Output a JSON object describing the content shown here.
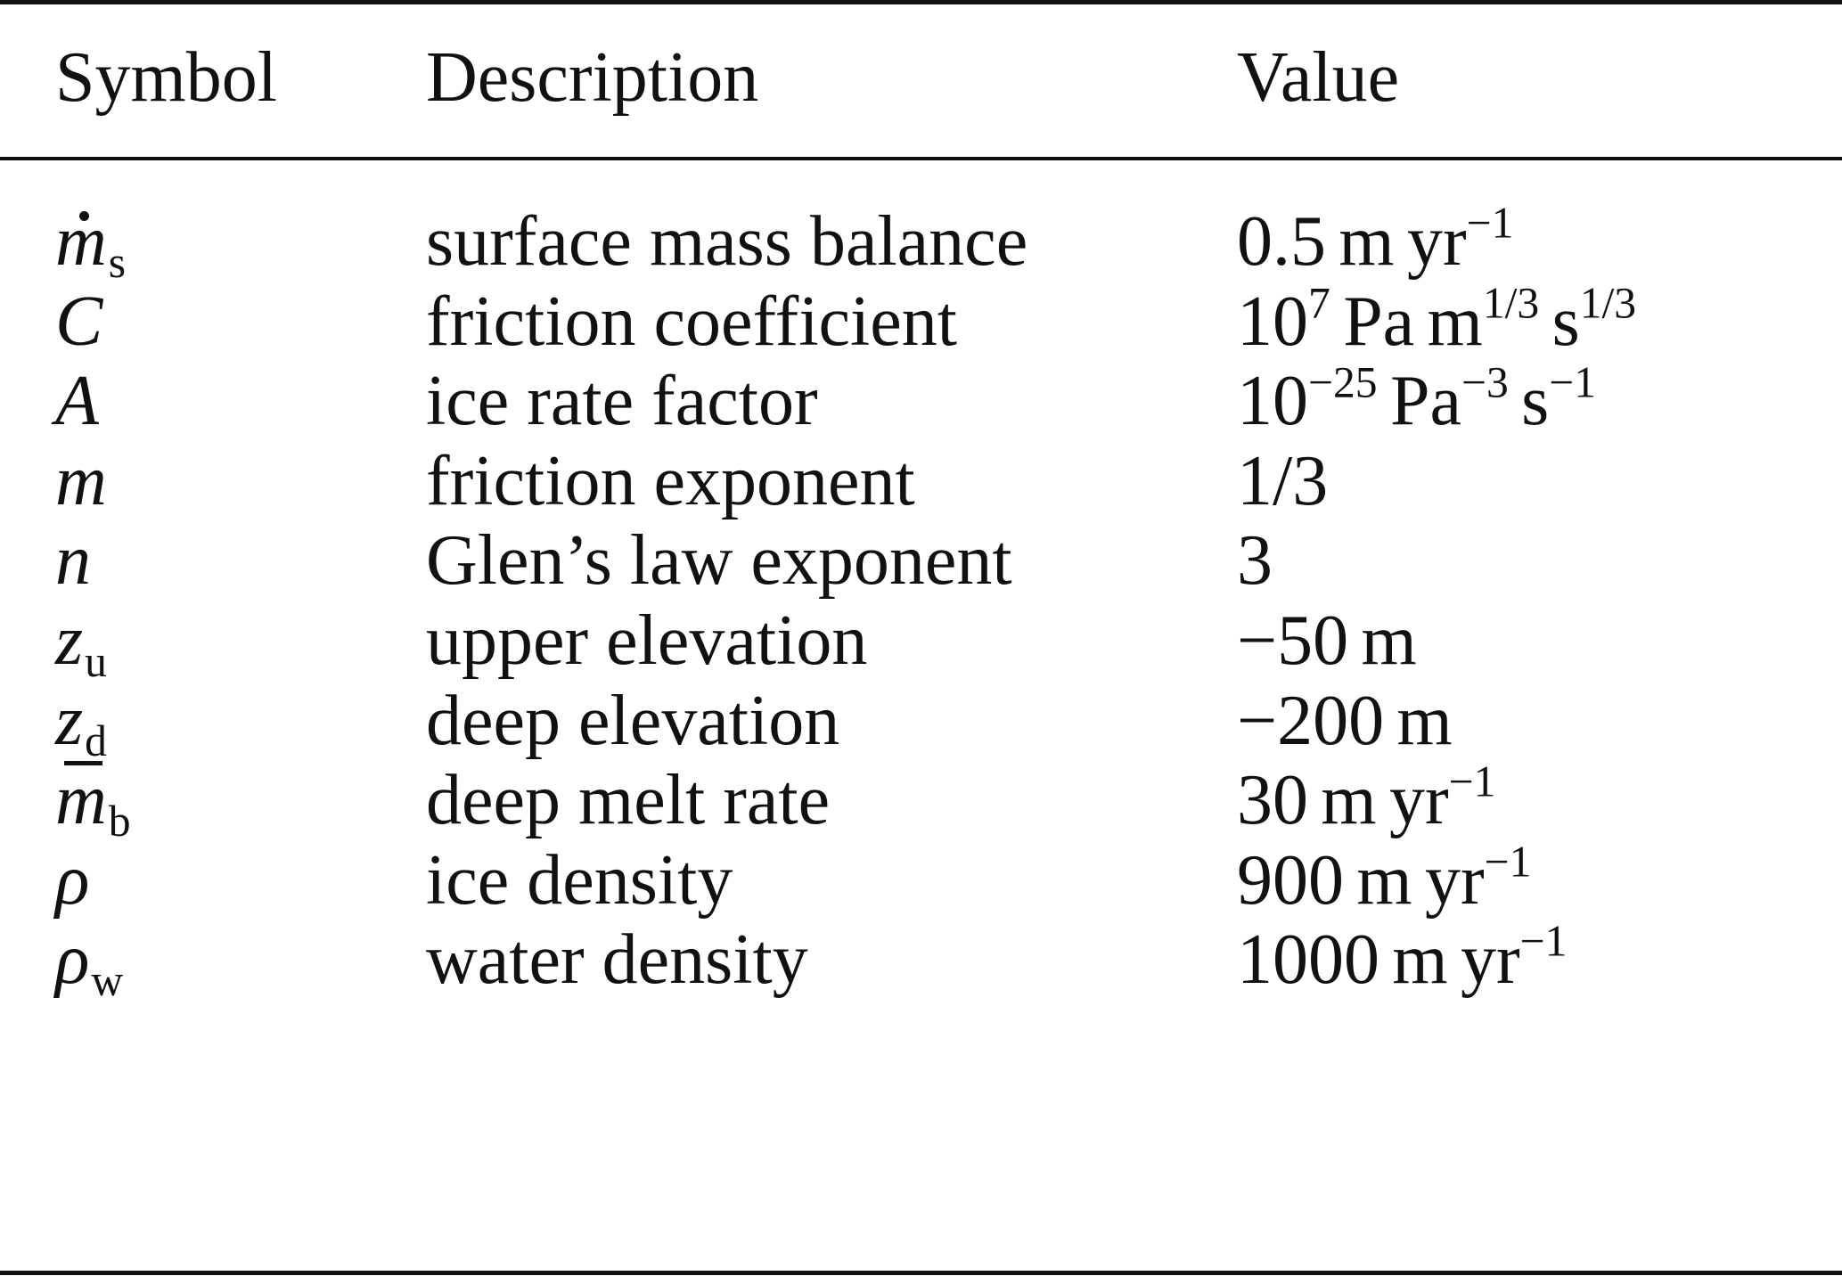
{
  "table": {
    "headers": {
      "symbol": "Symbol",
      "description": "Description",
      "value": "Value"
    },
    "rows": [
      {
        "symbol_base": "m",
        "symbol_sub": "s",
        "symbol_accent": "dot",
        "description": "surface mass balance",
        "value_parts": [
          {
            "t": "0.5"
          },
          {
            "sp": 1
          },
          {
            "t": "m"
          },
          {
            "sp": 1
          },
          {
            "t": "yr"
          },
          {
            "sup": "−1"
          }
        ]
      },
      {
        "symbol_base": "C",
        "symbol_sub": "",
        "symbol_accent": "",
        "description": "friction coefficient",
        "value_parts": [
          {
            "t": "10"
          },
          {
            "sup": "7"
          },
          {
            "sp": 1
          },
          {
            "t": "Pa"
          },
          {
            "sp": 1
          },
          {
            "t": "m"
          },
          {
            "sup": "1/3"
          },
          {
            "sp": 1
          },
          {
            "t": "s"
          },
          {
            "sup": "1/3"
          }
        ]
      },
      {
        "symbol_base": "A",
        "symbol_sub": "",
        "symbol_accent": "",
        "description": "ice rate factor",
        "value_parts": [
          {
            "t": "10"
          },
          {
            "sup": "−25"
          },
          {
            "sp": 1
          },
          {
            "t": "Pa"
          },
          {
            "sup": "−3"
          },
          {
            "sp": 1
          },
          {
            "t": "s"
          },
          {
            "sup": "−1"
          }
        ]
      },
      {
        "symbol_base": "m",
        "symbol_sub": "",
        "symbol_accent": "",
        "description": "friction exponent",
        "value_parts": [
          {
            "t": "1/3"
          }
        ]
      },
      {
        "symbol_base": "n",
        "symbol_sub": "",
        "symbol_accent": "",
        "description": "Glen’s law exponent",
        "value_parts": [
          {
            "t": "3"
          }
        ]
      },
      {
        "symbol_base": "z",
        "symbol_sub": "u",
        "symbol_accent": "",
        "description": "upper elevation",
        "value_parts": [
          {
            "t": "−50"
          },
          {
            "sp": 1
          },
          {
            "t": "m"
          }
        ]
      },
      {
        "symbol_base": "z",
        "symbol_sub": "d",
        "symbol_accent": "",
        "description": "deep elevation",
        "value_parts": [
          {
            "t": "−200"
          },
          {
            "sp": 1
          },
          {
            "t": "m"
          }
        ]
      },
      {
        "symbol_base": "m",
        "symbol_sub": "b",
        "symbol_accent": "bar",
        "description": "deep melt rate",
        "value_parts": [
          {
            "t": "30"
          },
          {
            "sp": 1
          },
          {
            "t": "m"
          },
          {
            "sp": 1
          },
          {
            "t": "yr"
          },
          {
            "sup": "−1"
          }
        ]
      },
      {
        "symbol_base": "ρ",
        "symbol_sub": "",
        "symbol_accent": "",
        "description": "ice density",
        "value_parts": [
          {
            "t": "900"
          },
          {
            "sp": 1
          },
          {
            "t": "m"
          },
          {
            "sp": 1
          },
          {
            "t": "yr"
          },
          {
            "sup": "−1"
          }
        ]
      },
      {
        "symbol_base": "ρ",
        "symbol_sub": "w",
        "symbol_accent": "",
        "description": "water density",
        "value_parts": [
          {
            "t": "1000"
          },
          {
            "sp": 1
          },
          {
            "t": "m"
          },
          {
            "sp": 1
          },
          {
            "t": "yr"
          },
          {
            "sup": "−1"
          }
        ]
      }
    ]
  }
}
